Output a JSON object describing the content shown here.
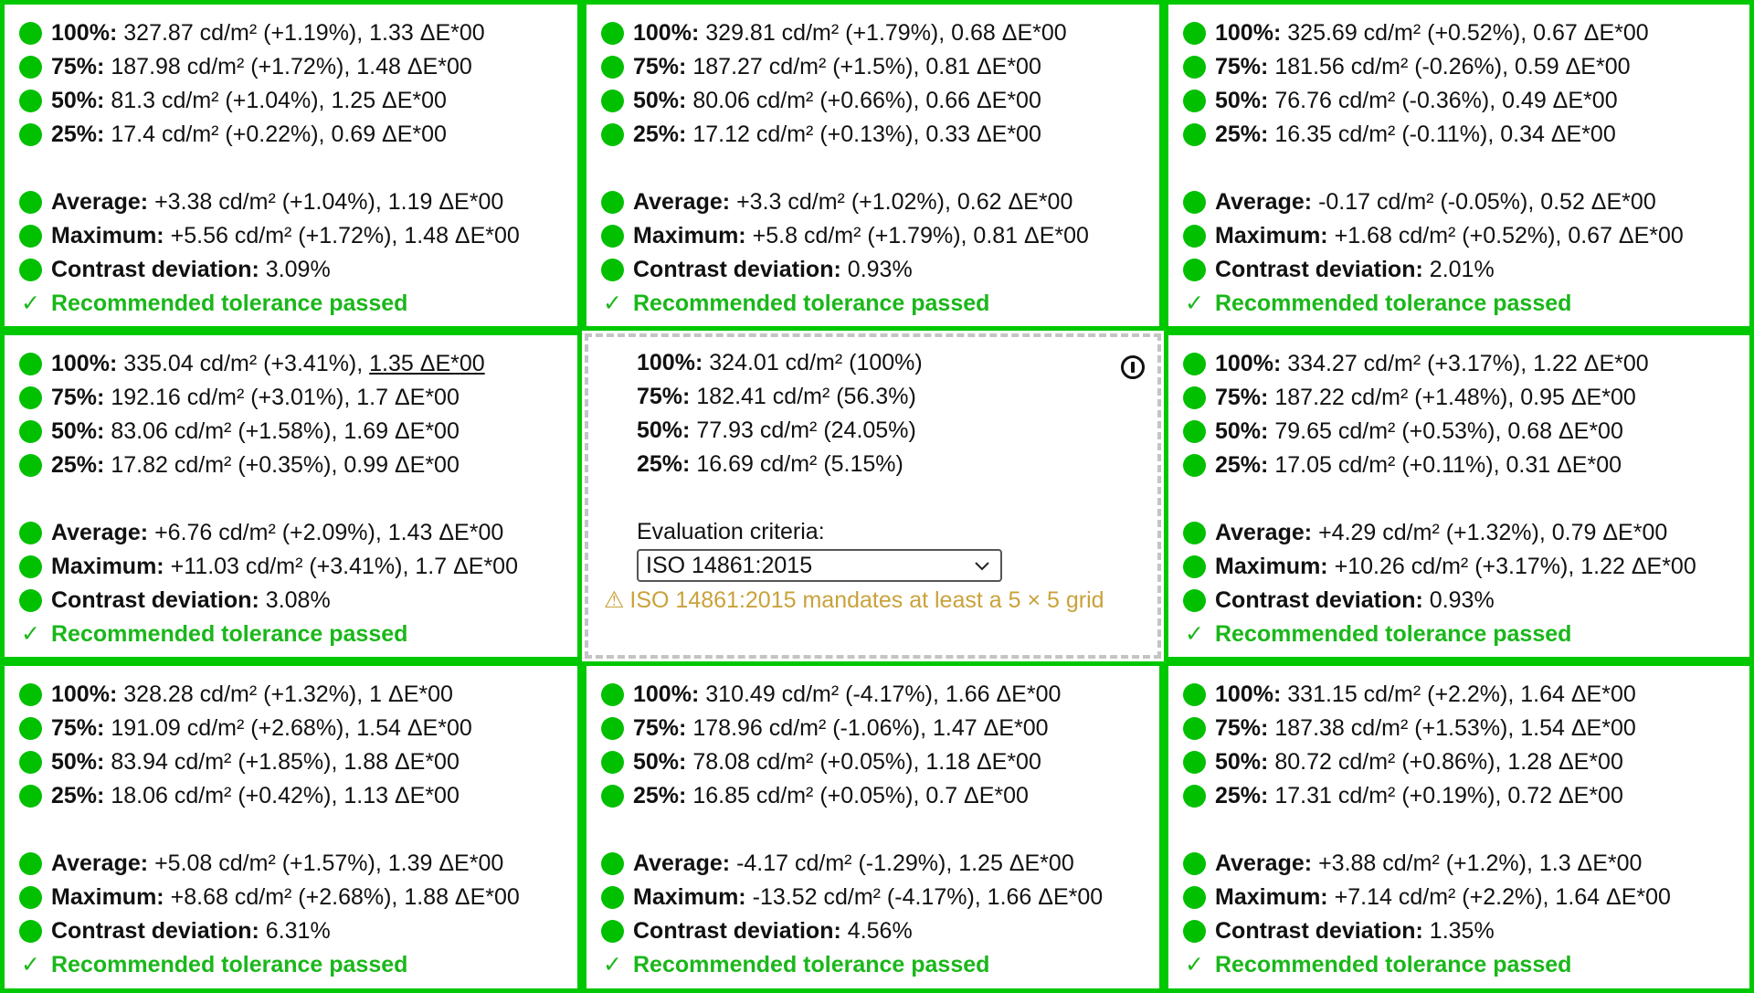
{
  "colors": {
    "pass_border": "#00c800",
    "status_dot": "#00c000",
    "pass_text": "#1ab71a",
    "warning_text": "#c9a23a",
    "reference_border": "#c4c4c4"
  },
  "icons": {
    "status": "green-dot-icon",
    "passed": "checkmark-icon",
    "info": "info-icon",
    "warning": "warning-triangle-icon",
    "dropdown": "chevron-down-icon"
  },
  "cells": [
    {
      "lines": [
        {
          "label": "100%:",
          "value": "327.87 cd/m² (+1.19%), 1.33 ΔE*00"
        },
        {
          "label": "75%:",
          "value": "187.98 cd/m² (+1.72%), 1.48 ΔE*00"
        },
        {
          "label": "50%:",
          "value": "81.3 cd/m² (+1.04%), 1.25 ΔE*00"
        },
        {
          "label": "25%:",
          "value": "17.4 cd/m² (+0.22%), 0.69 ΔE*00"
        },
        {
          "label": "Average:",
          "value": "+3.38 cd/m² (+1.04%), 1.19 ΔE*00"
        },
        {
          "label": "Maximum:",
          "value": "+5.56 cd/m² (+1.72%), 1.48 ΔE*00"
        },
        {
          "label": "Contrast deviation:",
          "value": "3.09%"
        }
      ],
      "status": "Recommended tolerance passed"
    },
    {
      "lines": [
        {
          "label": "100%:",
          "value": "329.81 cd/m² (+1.79%), 0.68 ΔE*00"
        },
        {
          "label": "75%:",
          "value": "187.27 cd/m² (+1.5%), 0.81 ΔE*00"
        },
        {
          "label": "50%:",
          "value": "80.06 cd/m² (+0.66%), 0.66 ΔE*00"
        },
        {
          "label": "25%:",
          "value": "17.12 cd/m² (+0.13%), 0.33 ΔE*00"
        },
        {
          "label": "Average:",
          "value": "+3.3 cd/m² (+1.02%), 0.62 ΔE*00"
        },
        {
          "label": "Maximum:",
          "value": "+5.8 cd/m² (+1.79%), 0.81 ΔE*00"
        },
        {
          "label": "Contrast deviation:",
          "value": "0.93%"
        }
      ],
      "status": "Recommended tolerance passed"
    },
    {
      "lines": [
        {
          "label": "100%:",
          "value": "325.69 cd/m² (+0.52%), 0.67 ΔE*00"
        },
        {
          "label": "75%:",
          "value": "181.56 cd/m² (-0.26%), 0.59 ΔE*00"
        },
        {
          "label": "50%:",
          "value": "76.76 cd/m² (-0.36%), 0.49 ΔE*00"
        },
        {
          "label": "25%:",
          "value": "16.35 cd/m² (-0.11%), 0.34 ΔE*00"
        },
        {
          "label": "Average:",
          "value": "-0.17 cd/m² (-0.05%), 0.52 ΔE*00"
        },
        {
          "label": "Maximum:",
          "value": "+1.68 cd/m² (+0.52%), 0.67 ΔE*00"
        },
        {
          "label": "Contrast deviation:",
          "value": "2.01%"
        }
      ],
      "status": "Recommended tolerance passed"
    },
    {
      "lines": [
        {
          "label": "100%:",
          "value_plain": "335.04 cd/m² (+3.41%), ",
          "value_underlined": "1.35 ΔE*00"
        },
        {
          "label": "75%:",
          "value": "192.16 cd/m² (+3.01%), 1.7 ΔE*00"
        },
        {
          "label": "50%:",
          "value": "83.06 cd/m² (+1.58%), 1.69 ΔE*00"
        },
        {
          "label": "25%:",
          "value": "17.82 cd/m² (+0.35%), 0.99 ΔE*00"
        },
        {
          "label": "Average:",
          "value": "+6.76 cd/m² (+2.09%), 1.43 ΔE*00"
        },
        {
          "label": "Maximum:",
          "value": "+11.03 cd/m² (+3.41%), 1.7 ΔE*00"
        },
        {
          "label": "Contrast deviation:",
          "value": "3.08%"
        }
      ],
      "status": "Recommended tolerance passed"
    },
    {
      "reference": true,
      "lines": [
        {
          "label": "100%:",
          "value": "324.01 cd/m² (100%)"
        },
        {
          "label": "75%:",
          "value": "182.41 cd/m² (56.3%)"
        },
        {
          "label": "50%:",
          "value": "77.93 cd/m² (24.05%)"
        },
        {
          "label": "25%:",
          "value": "16.69 cd/m² (5.15%)"
        }
      ],
      "criteria_label": "Evaluation criteria:",
      "criteria_selected": "ISO 14861:2015",
      "warning_glyph": "⚠",
      "warning": "ISO 14861:2015 mandates at least a 5 × 5 grid"
    },
    {
      "lines": [
        {
          "label": "100%:",
          "value": "334.27 cd/m² (+3.17%), 1.22 ΔE*00"
        },
        {
          "label": "75%:",
          "value": "187.22 cd/m² (+1.48%), 0.95 ΔE*00"
        },
        {
          "label": "50%:",
          "value": "79.65 cd/m² (+0.53%), 0.68 ΔE*00"
        },
        {
          "label": "25%:",
          "value": "17.05 cd/m² (+0.11%), 0.31 ΔE*00"
        },
        {
          "label": "Average:",
          "value": "+4.29 cd/m² (+1.32%), 0.79 ΔE*00"
        },
        {
          "label": "Maximum:",
          "value": "+10.26 cd/m² (+3.17%), 1.22 ΔE*00"
        },
        {
          "label": "Contrast deviation:",
          "value": "0.93%"
        }
      ],
      "status": "Recommended tolerance passed"
    },
    {
      "lines": [
        {
          "label": "100%:",
          "value": "328.28 cd/m² (+1.32%), 1 ΔE*00"
        },
        {
          "label": "75%:",
          "value": "191.09 cd/m² (+2.68%), 1.54 ΔE*00"
        },
        {
          "label": "50%:",
          "value": "83.94 cd/m² (+1.85%), 1.88 ΔE*00"
        },
        {
          "label": "25%:",
          "value": "18.06 cd/m² (+0.42%), 1.13 ΔE*00"
        },
        {
          "label": "Average:",
          "value": "+5.08 cd/m² (+1.57%), 1.39 ΔE*00"
        },
        {
          "label": "Maximum:",
          "value": "+8.68 cd/m² (+2.68%), 1.88 ΔE*00"
        },
        {
          "label": "Contrast deviation:",
          "value": "6.31%"
        }
      ],
      "status": "Recommended tolerance passed"
    },
    {
      "lines": [
        {
          "label": "100%:",
          "value": "310.49 cd/m² (-4.17%), 1.66 ΔE*00"
        },
        {
          "label": "75%:",
          "value": "178.96 cd/m² (-1.06%), 1.47 ΔE*00"
        },
        {
          "label": "50%:",
          "value": "78.08 cd/m² (+0.05%), 1.18 ΔE*00"
        },
        {
          "label": "25%:",
          "value": "16.85 cd/m² (+0.05%), 0.7 ΔE*00"
        },
        {
          "label": "Average:",
          "value": "-4.17 cd/m² (-1.29%), 1.25 ΔE*00"
        },
        {
          "label": "Maximum:",
          "value": "-13.52 cd/m² (-4.17%), 1.66 ΔE*00"
        },
        {
          "label": "Contrast deviation:",
          "value": "4.56%"
        }
      ],
      "status": "Recommended tolerance passed"
    },
    {
      "lines": [
        {
          "label": "100%:",
          "value": "331.15 cd/m² (+2.2%), 1.64 ΔE*00"
        },
        {
          "label": "75%:",
          "value": "187.38 cd/m² (+1.53%), 1.54 ΔE*00"
        },
        {
          "label": "50%:",
          "value": "80.72 cd/m² (+0.86%), 1.28 ΔE*00"
        },
        {
          "label": "25%:",
          "value": "17.31 cd/m² (+0.19%), 0.72 ΔE*00"
        },
        {
          "label": "Average:",
          "value": "+3.88 cd/m² (+1.2%), 1.3 ΔE*00"
        },
        {
          "label": "Maximum:",
          "value": "+7.14 cd/m² (+2.2%), 1.64 ΔE*00"
        },
        {
          "label": "Contrast deviation:",
          "value": "1.35%"
        }
      ],
      "status": "Recommended tolerance passed"
    }
  ]
}
